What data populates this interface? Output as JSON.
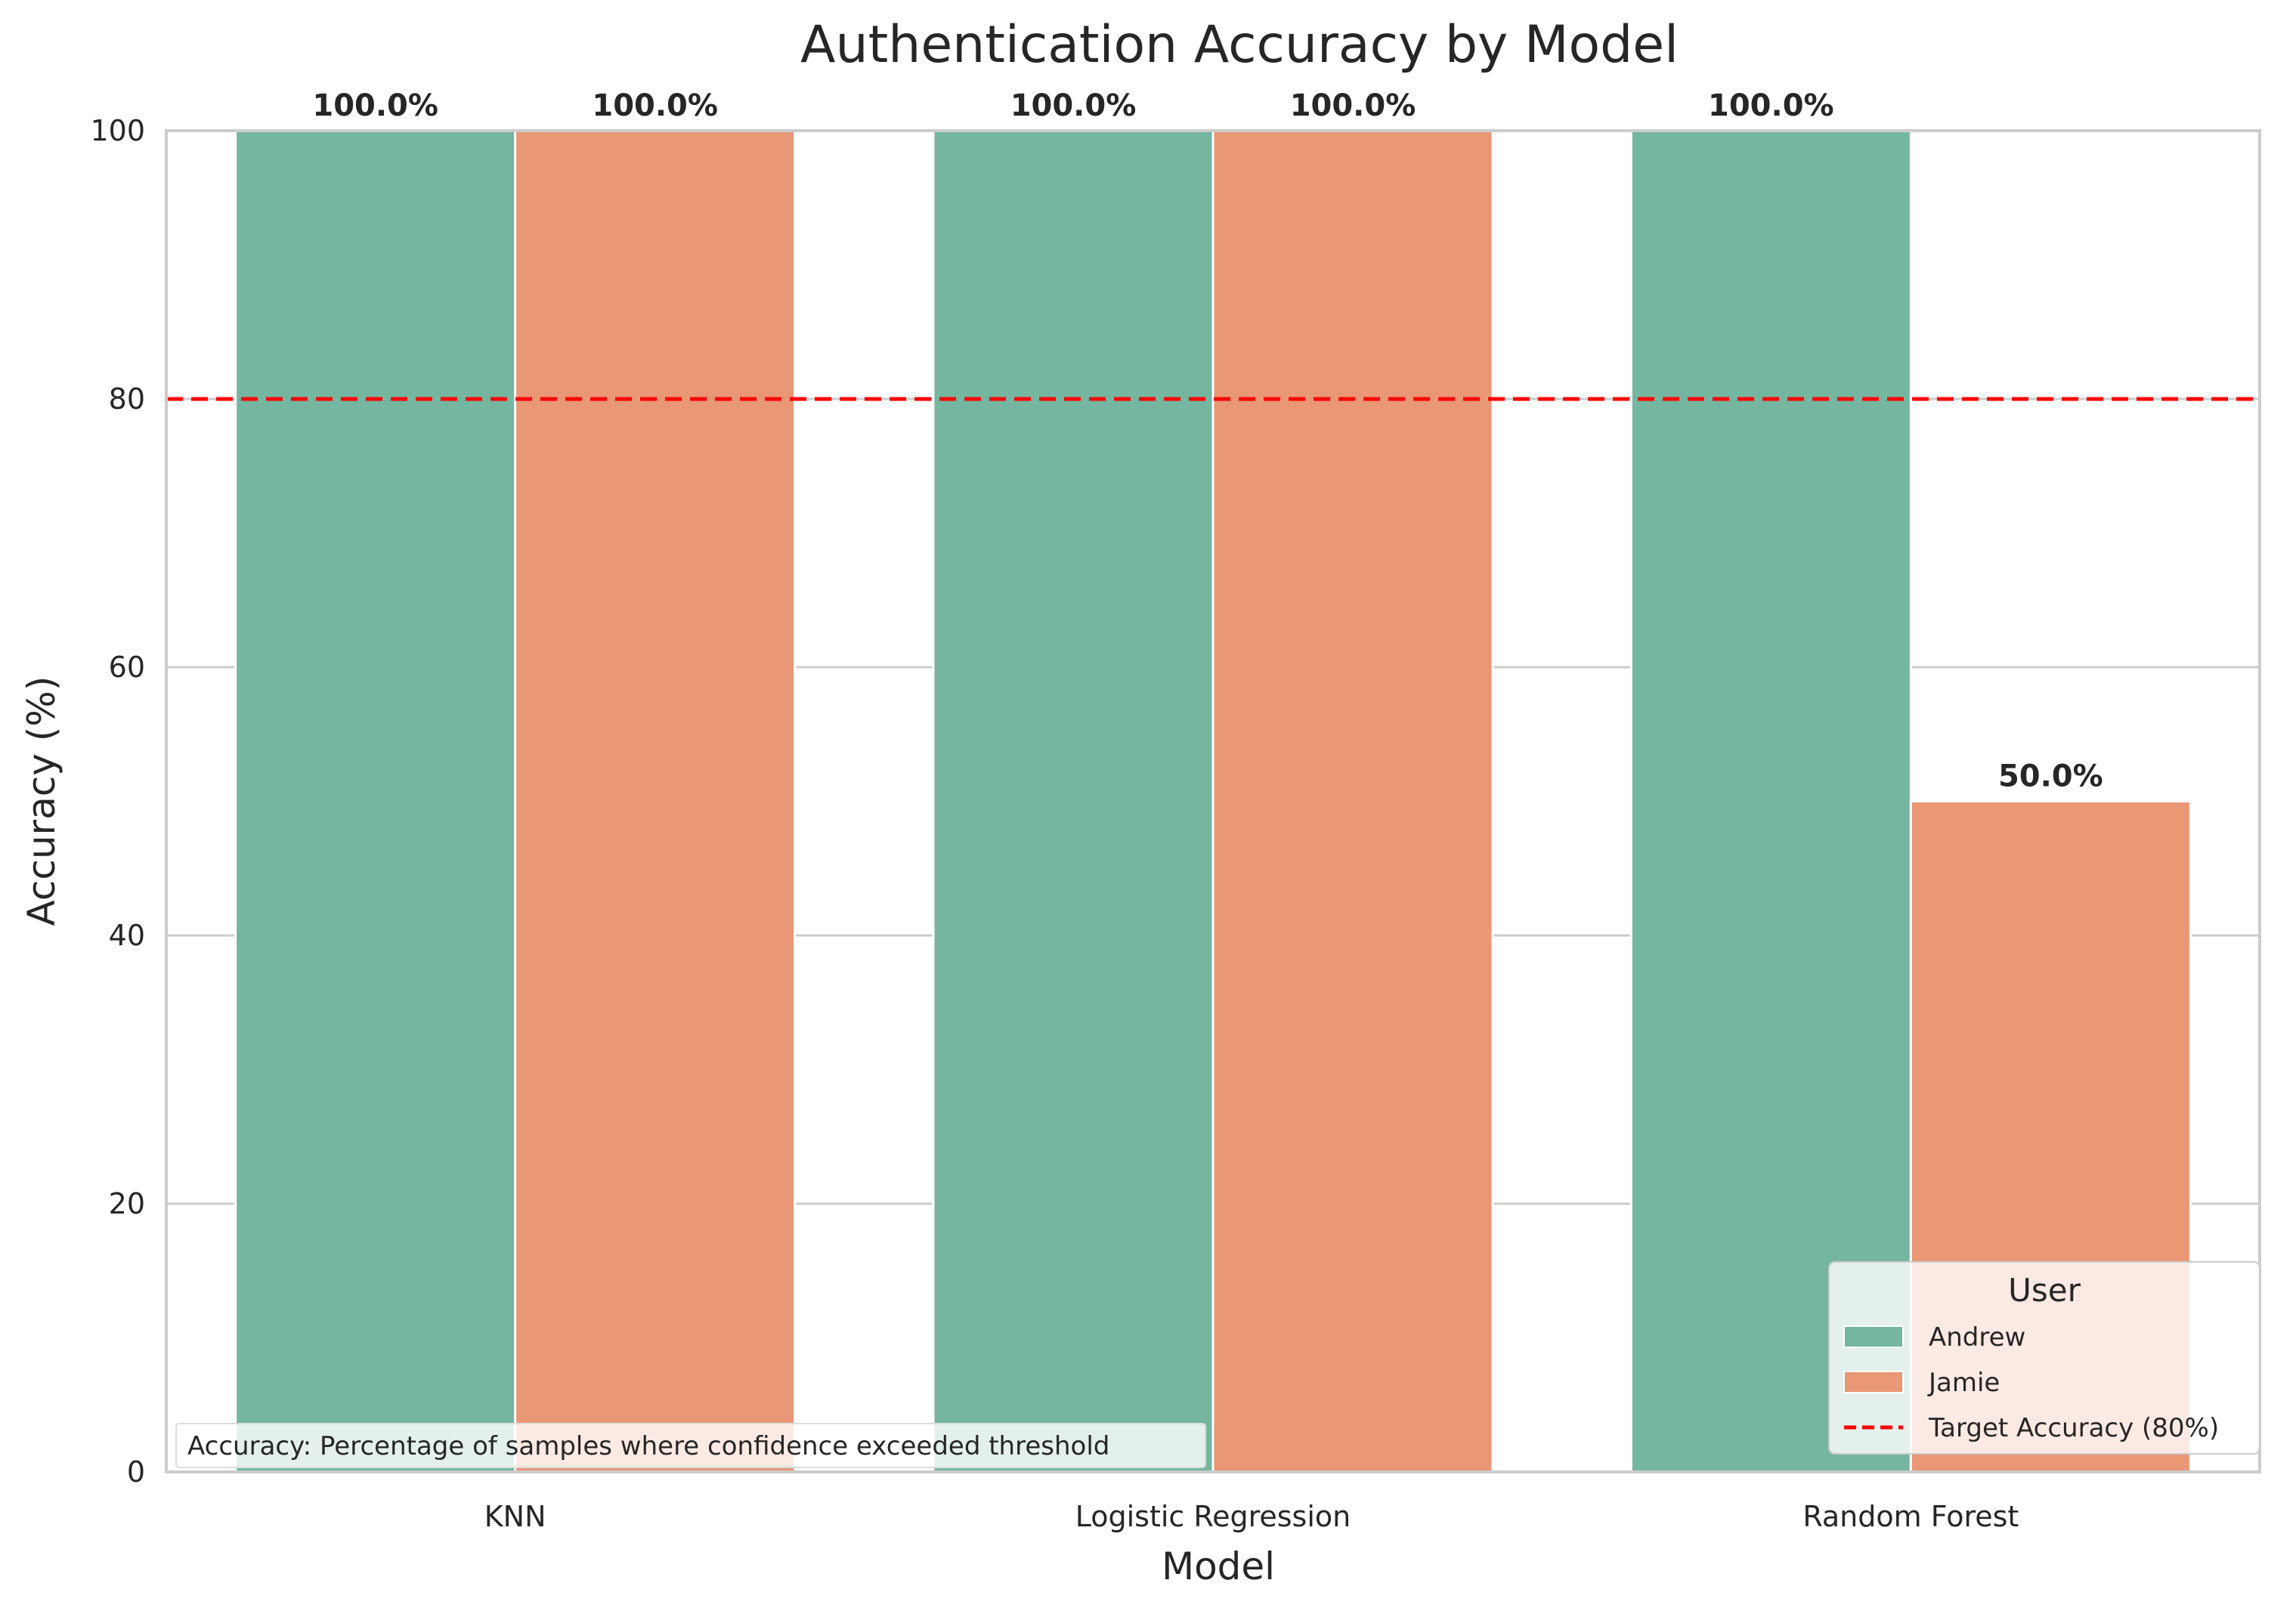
{
  "chart_data": {
    "type": "bar",
    "title": "Authentication Accuracy by Model",
    "xlabel": "Model",
    "ylabel": "Accuracy (%)",
    "ylim": [
      0,
      100
    ],
    "yticks": [
      0,
      20,
      40,
      60,
      80,
      100
    ],
    "categories": [
      "KNN",
      "Logistic Regression",
      "Random Forest"
    ],
    "series": [
      {
        "name": "Andrew",
        "values": [
          100.0,
          100.0,
          100.0
        ],
        "color": "#74b6a0"
      },
      {
        "name": "Jamie",
        "values": [
          100.0,
          100.0,
          50.0
        ],
        "color": "#e99775"
      }
    ],
    "data_labels": [
      [
        "100.0%",
        "100.0%",
        "100.0%"
      ],
      [
        "100.0%",
        "100.0%",
        "50.0%"
      ]
    ],
    "target_line": {
      "value": 80,
      "label": "Target Accuracy (80%)",
      "color": "#ff0000",
      "style": "dashed"
    },
    "legend": {
      "title": "User",
      "placement": "lower-right"
    },
    "annotation": "Accuracy: Percentage of samples where confidence exceeded threshold",
    "grid": "horizontal"
  }
}
